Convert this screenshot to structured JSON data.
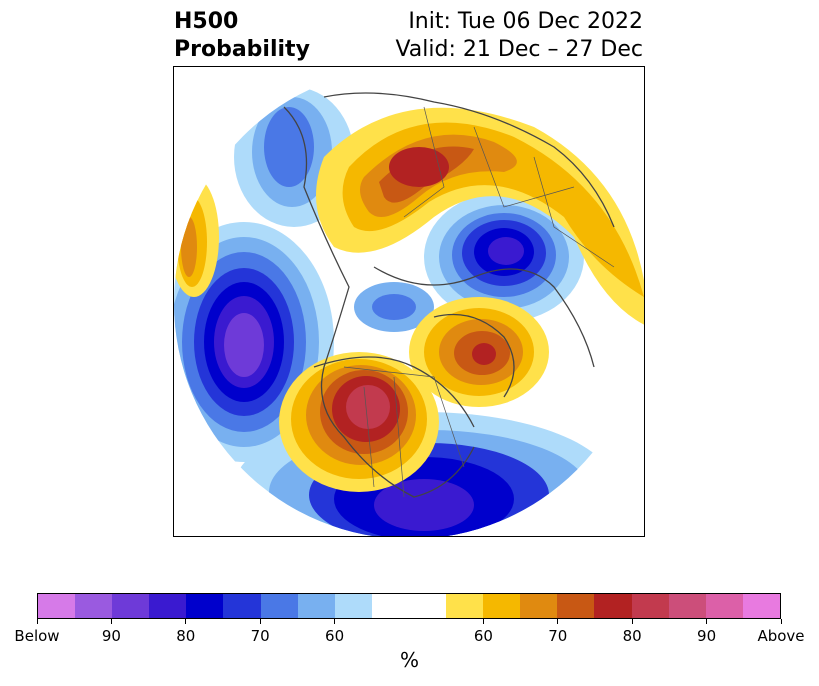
{
  "title": {
    "left_line1": "H500",
    "left_line2": "Probability",
    "right_line1": "Init: Tue 06 Dec 2022",
    "right_line2": "Valid: 21 Dec – 27 Dec"
  },
  "colors": {
    "below": [
      "#d67ae8",
      "#9a5ae0",
      "#6e3ad8",
      "#3a1ad0",
      "#0000cc",
      "#2435d8",
      "#4a78e6",
      "#78b0f0",
      "#aedbfa"
    ],
    "neutral": "#ffffff",
    "above": [
      "#ffe14a",
      "#f5b800",
      "#e08a10",
      "#c85814",
      "#b22222",
      "#c23a4e",
      "#cc4e7a",
      "#dc60a8",
      "#e87ae0"
    ],
    "land_outline": "#444444"
  },
  "colorbar": {
    "tick_labels": [
      "Below",
      "90",
      "80",
      "70",
      "60",
      "60",
      "70",
      "80",
      "90",
      "Above"
    ],
    "unit": "%"
  }
}
